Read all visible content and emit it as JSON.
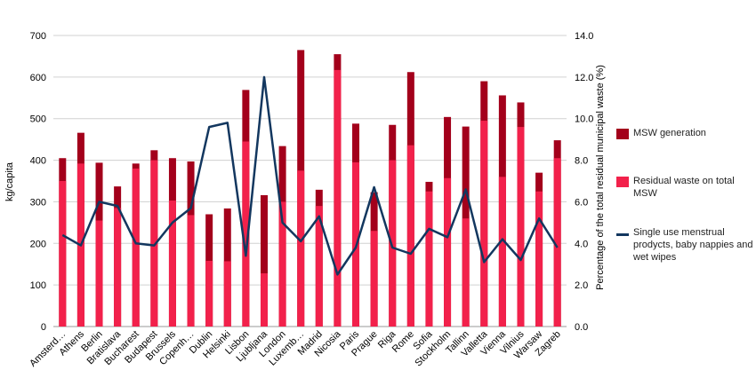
{
  "chart_data": {
    "type": "bar",
    "categories": [
      "Amsterd…",
      "Athens",
      "Berlin",
      "Bratislava",
      "Bucharest",
      "Budapest",
      "Brussels",
      "Copenh…",
      "Dublin",
      "Helsinki",
      "Lisbon",
      "Ljubljana",
      "London",
      "Luxemb…",
      "Madrid",
      "Nicosia",
      "Paris",
      "Prague",
      "Riga",
      "Rome",
      "Sofia",
      "Stockholm",
      "Tallinn",
      "Valletta",
      "Vienna",
      "Vilnius",
      "Warsaw",
      "Zagreb"
    ],
    "series": [
      {
        "name": "MSW generation",
        "type": "bar",
        "axis": "left",
        "color": "#A3001B",
        "values": [
          405,
          466,
          394,
          337,
          392,
          424,
          405,
          397,
          270,
          284,
          569,
          316,
          434,
          665,
          329,
          655,
          488,
          323,
          485,
          612,
          348,
          504,
          481,
          590,
          556,
          539,
          370,
          448
        ]
      },
      {
        "name": "Residual waste on total MSW",
        "type": "bar",
        "axis": "left",
        "color": "#F2214B",
        "values": [
          350,
          392,
          255,
          285,
          380,
          400,
          303,
          268,
          158,
          157,
          445,
          128,
          300,
          375,
          290,
          617,
          395,
          230,
          400,
          436,
          325,
          357,
          260,
          495,
          360,
          480,
          325,
          405
        ]
      },
      {
        "name": "Single use menstrual prodycts, baby nappies and wet wipes",
        "type": "line",
        "axis": "right",
        "color": "#13375F",
        "values": [
          4.4,
          3.9,
          6.0,
          5.8,
          4.0,
          3.9,
          5.0,
          5.7,
          9.6,
          9.8,
          3.4,
          12.0,
          5.0,
          4.1,
          5.3,
          2.5,
          3.8,
          6.7,
          3.8,
          3.5,
          4.7,
          4.3,
          6.6,
          3.1,
          4.2,
          3.2,
          5.2,
          3.8
        ]
      }
    ],
    "ylabel": "kg/capita",
    "ylabel_right": "Percentage of the total residual municipal waste (%)",
    "ylim": [
      0,
      700
    ],
    "ylim_right": [
      0,
      14
    ],
    "yticks": [
      "0",
      "100",
      "200",
      "300",
      "400",
      "500",
      "600",
      "700"
    ],
    "yticks_right": [
      "0.0",
      "2.0",
      "4.0",
      "6.0",
      "8.0",
      "10.0",
      "12.0",
      "14.0"
    ],
    "grid": true,
    "legend_position": "right"
  }
}
